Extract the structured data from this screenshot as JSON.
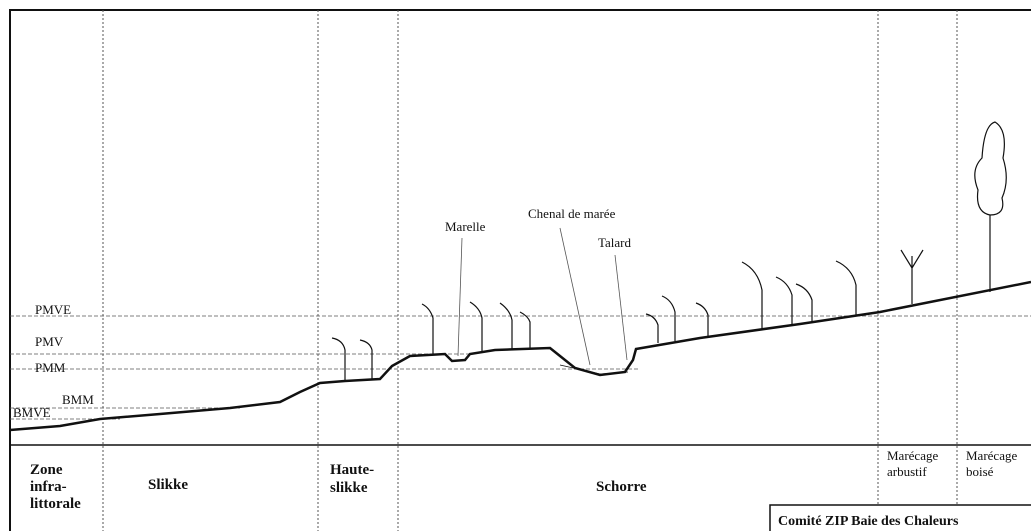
{
  "levels": [
    "PMVE",
    "PMV",
    "PMM",
    "BMM",
    "BMVE"
  ],
  "annotations": [
    "Marelle",
    "Chenal de marée",
    "Talard"
  ],
  "zones": [
    {
      "lines": [
        "Zone",
        "infra-",
        "littorale"
      ]
    },
    {
      "lines": [
        "Slikke"
      ]
    },
    {
      "lines": [
        "Haute-",
        "slikke"
      ]
    },
    {
      "lines": [
        "Schorre"
      ]
    },
    {
      "lines": [
        "Marécage",
        "arbustif"
      ]
    },
    {
      "lines": [
        "Marécage",
        "boisé"
      ]
    }
  ],
  "credit": "Comité ZIP Baie des Chaleurs"
}
